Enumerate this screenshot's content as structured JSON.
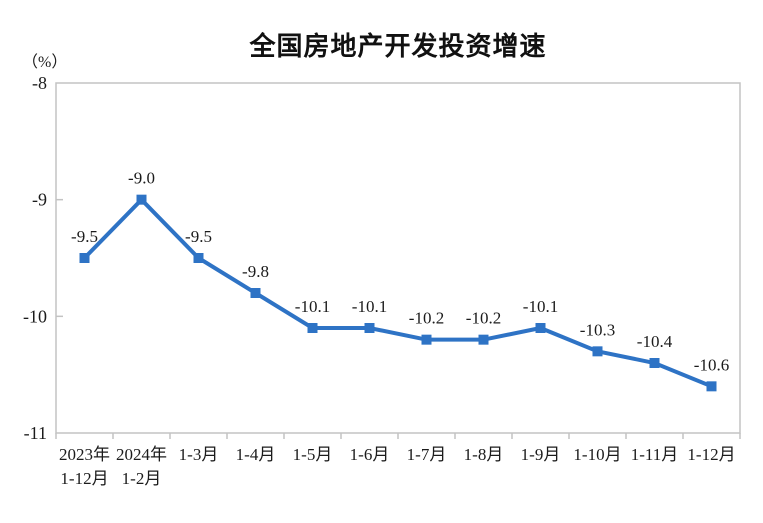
{
  "title": "全国房地产开发投资增速",
  "y_axis_unit": "（%）",
  "chart_data": {
    "type": "line",
    "title": "全国房地产开发投资增速",
    "ylabel": "（%）",
    "categories": [
      "2023年\n1-12月",
      "2024年\n1-2月",
      "1-3月",
      "1-4月",
      "1-5月",
      "1-6月",
      "1-7月",
      "1-8月",
      "1-9月",
      "1-10月",
      "1-11月",
      "1-12月"
    ],
    "values": [
      -9.5,
      -9.0,
      -9.5,
      -9.8,
      -10.1,
      -10.1,
      -10.2,
      -10.2,
      -10.1,
      -10.3,
      -10.4,
      -10.6
    ],
    "point_labels": [
      "-9.5",
      "-9.0",
      "-9.5",
      "-9.8",
      "-10.1",
      "-10.1",
      "-10.2",
      "-10.2",
      "-10.1",
      "-10.3",
      "-10.4",
      "-10.6"
    ],
    "ylim": [
      -11,
      -8
    ],
    "yticks": [
      -8,
      -9,
      -10,
      -11
    ],
    "grid": false,
    "legend": "none",
    "line_color": "#2e73c5",
    "marker": "square",
    "marker_color": "#2e73c5",
    "label_color": "#1b1b1b",
    "tick_label_color": "#1b1b1b",
    "axis_color": "#c3c3c3"
  }
}
